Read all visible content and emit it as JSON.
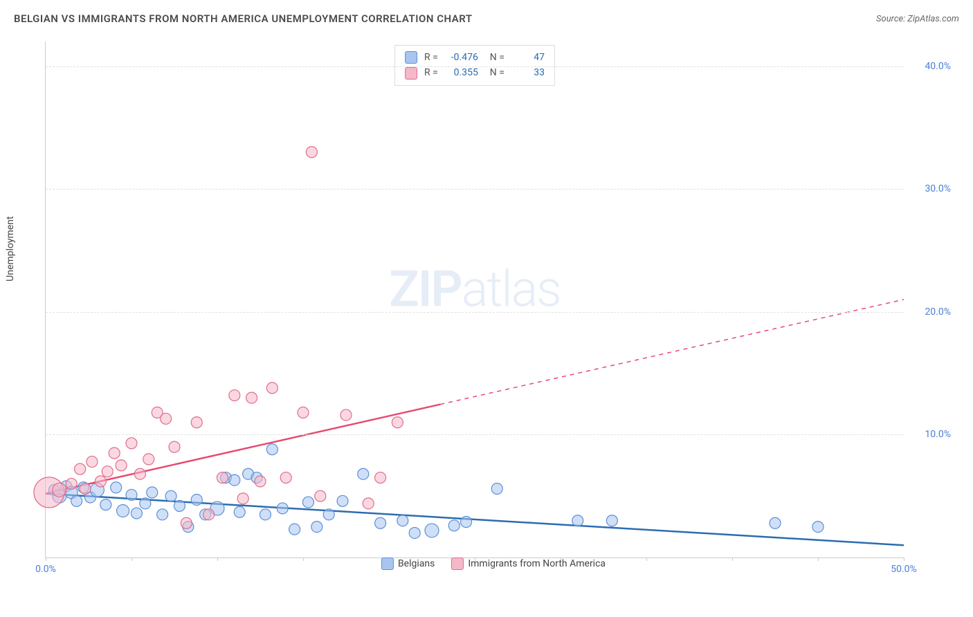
{
  "header": {
    "title": "BELGIAN VS IMMIGRANTS FROM NORTH AMERICA UNEMPLOYMENT CORRELATION CHART",
    "source": "Source: ZipAtlas.com"
  },
  "watermark": {
    "zip": "ZIP",
    "atlas": "atlas"
  },
  "chart": {
    "type": "scatter",
    "y_label": "Unemployment",
    "xlim": [
      0,
      50
    ],
    "ylim": [
      0,
      42
    ],
    "x_ticks": [
      {
        "pos": 0,
        "label": "0.0%"
      },
      {
        "pos": 5,
        "label": ""
      },
      {
        "pos": 10,
        "label": ""
      },
      {
        "pos": 15,
        "label": ""
      },
      {
        "pos": 20,
        "label": ""
      },
      {
        "pos": 25,
        "label": ""
      },
      {
        "pos": 30,
        "label": ""
      },
      {
        "pos": 35,
        "label": ""
      },
      {
        "pos": 40,
        "label": ""
      },
      {
        "pos": 45,
        "label": ""
      },
      {
        "pos": 50,
        "label": "50.0%"
      }
    ],
    "y_ticks": [
      {
        "pos": 10,
        "label": "10.0%"
      },
      {
        "pos": 20,
        "label": "20.0%"
      },
      {
        "pos": 30,
        "label": "30.0%"
      },
      {
        "pos": 40,
        "label": "40.0%"
      }
    ],
    "grid_color": "#e0e0e0",
    "background_color": "#ffffff",
    "series": [
      {
        "name": "Belgians",
        "fill": "#a8c5f0",
        "stroke": "#5b8fd6",
        "line_color": "#2b6cb0",
        "opacity": 0.55,
        "marker_r": 8,
        "stats": {
          "R": "-0.476",
          "N": "47"
        },
        "trend": {
          "x1": 0,
          "y1": 5.2,
          "x2": 50,
          "y2": 1.0,
          "solid_until": 50
        },
        "points": [
          {
            "x": 0.5,
            "y": 5.5,
            "r": 8
          },
          {
            "x": 0.8,
            "y": 5.0,
            "r": 10
          },
          {
            "x": 1.2,
            "y": 5.8,
            "r": 8
          },
          {
            "x": 1.5,
            "y": 5.3,
            "r": 9
          },
          {
            "x": 1.8,
            "y": 4.6,
            "r": 8
          },
          {
            "x": 2.2,
            "y": 5.7,
            "r": 8
          },
          {
            "x": 2.6,
            "y": 4.9,
            "r": 8
          },
          {
            "x": 3.0,
            "y": 5.5,
            "r": 10
          },
          {
            "x": 3.5,
            "y": 4.3,
            "r": 8
          },
          {
            "x": 4.1,
            "y": 5.7,
            "r": 8
          },
          {
            "x": 4.5,
            "y": 3.8,
            "r": 9
          },
          {
            "x": 5.0,
            "y": 5.1,
            "r": 8
          },
          {
            "x": 5.3,
            "y": 3.6,
            "r": 8
          },
          {
            "x": 5.8,
            "y": 4.4,
            "r": 8
          },
          {
            "x": 6.2,
            "y": 5.3,
            "r": 8
          },
          {
            "x": 6.8,
            "y": 3.5,
            "r": 8
          },
          {
            "x": 7.3,
            "y": 5.0,
            "r": 8
          },
          {
            "x": 7.8,
            "y": 4.2,
            "r": 8
          },
          {
            "x": 8.3,
            "y": 2.5,
            "r": 8
          },
          {
            "x": 8.8,
            "y": 4.7,
            "r": 8
          },
          {
            "x": 9.3,
            "y": 3.5,
            "r": 8
          },
          {
            "x": 10.0,
            "y": 4.0,
            "r": 10
          },
          {
            "x": 10.5,
            "y": 6.5,
            "r": 8
          },
          {
            "x": 11.0,
            "y": 6.3,
            "r": 8
          },
          {
            "x": 11.3,
            "y": 3.7,
            "r": 8
          },
          {
            "x": 11.8,
            "y": 6.8,
            "r": 8
          },
          {
            "x": 12.3,
            "y": 6.5,
            "r": 8
          },
          {
            "x": 12.8,
            "y": 3.5,
            "r": 8
          },
          {
            "x": 13.2,
            "y": 8.8,
            "r": 8
          },
          {
            "x": 13.8,
            "y": 4.0,
            "r": 8
          },
          {
            "x": 14.5,
            "y": 2.3,
            "r": 8
          },
          {
            "x": 15.3,
            "y": 4.5,
            "r": 8
          },
          {
            "x": 15.8,
            "y": 2.5,
            "r": 8
          },
          {
            "x": 16.5,
            "y": 3.5,
            "r": 8
          },
          {
            "x": 17.3,
            "y": 4.6,
            "r": 8
          },
          {
            "x": 18.5,
            "y": 6.8,
            "r": 8
          },
          {
            "x": 19.5,
            "y": 2.8,
            "r": 8
          },
          {
            "x": 20.8,
            "y": 3.0,
            "r": 8
          },
          {
            "x": 21.5,
            "y": 2.0,
            "r": 8
          },
          {
            "x": 22.5,
            "y": 2.2,
            "r": 10
          },
          {
            "x": 23.8,
            "y": 2.6,
            "r": 8
          },
          {
            "x": 24.5,
            "y": 2.9,
            "r": 8
          },
          {
            "x": 26.3,
            "y": 5.6,
            "r": 8
          },
          {
            "x": 31.0,
            "y": 3.0,
            "r": 8
          },
          {
            "x": 33.0,
            "y": 3.0,
            "r": 8
          },
          {
            "x": 42.5,
            "y": 2.8,
            "r": 8
          },
          {
            "x": 45.0,
            "y": 2.5,
            "r": 8
          }
        ]
      },
      {
        "name": "Immigrants from North America",
        "fill": "#f5b8c9",
        "stroke": "#e06c8a",
        "line_color": "#e84a70",
        "opacity": 0.55,
        "marker_r": 8,
        "stats": {
          "R": "0.355",
          "N": "33"
        },
        "trend": {
          "x1": 0,
          "y1": 5.2,
          "x2": 50,
          "y2": 21.0,
          "solid_until": 23
        },
        "points": [
          {
            "x": 0.2,
            "y": 5.3,
            "r": 22
          },
          {
            "x": 0.8,
            "y": 5.5,
            "r": 10
          },
          {
            "x": 1.5,
            "y": 6.0,
            "r": 8
          },
          {
            "x": 2.0,
            "y": 7.2,
            "r": 8
          },
          {
            "x": 2.3,
            "y": 5.6,
            "r": 8
          },
          {
            "x": 2.7,
            "y": 7.8,
            "r": 8
          },
          {
            "x": 3.2,
            "y": 6.2,
            "r": 8
          },
          {
            "x": 3.6,
            "y": 7.0,
            "r": 8
          },
          {
            "x": 4.0,
            "y": 8.5,
            "r": 8
          },
          {
            "x": 4.4,
            "y": 7.5,
            "r": 8
          },
          {
            "x": 5.0,
            "y": 9.3,
            "r": 8
          },
          {
            "x": 5.5,
            "y": 6.8,
            "r": 8
          },
          {
            "x": 6.0,
            "y": 8.0,
            "r": 8
          },
          {
            "x": 6.5,
            "y": 11.8,
            "r": 8
          },
          {
            "x": 7.0,
            "y": 11.3,
            "r": 8
          },
          {
            "x": 7.5,
            "y": 9.0,
            "r": 8
          },
          {
            "x": 8.2,
            "y": 2.8,
            "r": 8
          },
          {
            "x": 8.8,
            "y": 11.0,
            "r": 8
          },
          {
            "x": 9.5,
            "y": 3.5,
            "r": 8
          },
          {
            "x": 10.3,
            "y": 6.5,
            "r": 8
          },
          {
            "x": 11.0,
            "y": 13.2,
            "r": 8
          },
          {
            "x": 11.5,
            "y": 4.8,
            "r": 8
          },
          {
            "x": 12.0,
            "y": 13.0,
            "r": 8
          },
          {
            "x": 12.5,
            "y": 6.2,
            "r": 8
          },
          {
            "x": 13.2,
            "y": 13.8,
            "r": 8
          },
          {
            "x": 14.0,
            "y": 6.5,
            "r": 8
          },
          {
            "x": 15.0,
            "y": 11.8,
            "r": 8
          },
          {
            "x": 15.5,
            "y": 33.0,
            "r": 8
          },
          {
            "x": 16.0,
            "y": 5.0,
            "r": 8
          },
          {
            "x": 17.5,
            "y": 11.6,
            "r": 8
          },
          {
            "x": 18.8,
            "y": 4.4,
            "r": 8
          },
          {
            "x": 19.5,
            "y": 6.5,
            "r": 8
          },
          {
            "x": 20.5,
            "y": 11.0,
            "r": 8
          }
        ]
      }
    ],
    "legend_bottom": [
      {
        "label": "Belgians",
        "fill": "#a8c5f0",
        "stroke": "#5b8fd6"
      },
      {
        "label": "Immigrants from North America",
        "fill": "#f5b8c9",
        "stroke": "#e06c8a"
      }
    ]
  }
}
